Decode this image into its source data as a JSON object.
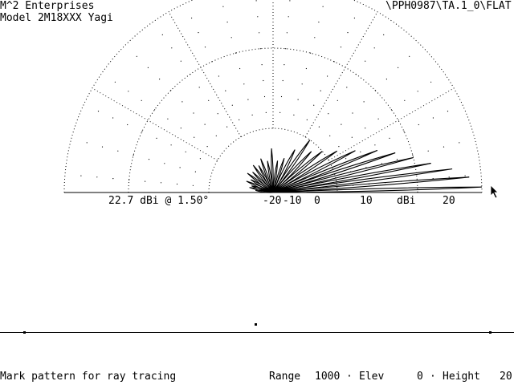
{
  "header": {
    "company": "M^2 Enterprises",
    "model": "Model 2M18XXX Yagi",
    "file_path": "\\PPH0987\\TA.1_0\\FLAT"
  },
  "plot": {
    "peak_readout": "22.7 dBi @ 1.50°",
    "scale_labels": [
      "-20",
      "-10",
      "0",
      "10",
      "dBi",
      "20"
    ]
  },
  "status": {
    "prompt": "Mark pattern for ray tracing",
    "range_label": "Range",
    "range_value": "1000",
    "elev_label": "Elev",
    "elev_value": "0",
    "height_label": "Height",
    "height_value": "20"
  },
  "icons": {
    "cursor": "arrow-pointer-icon"
  },
  "colors": {
    "foreground": "#000000",
    "background": "#ffffff"
  }
}
